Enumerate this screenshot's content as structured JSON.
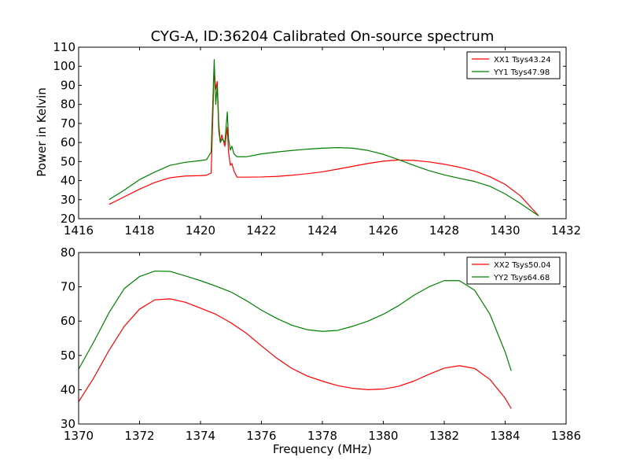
{
  "figure": {
    "title": "CYG-A, ID:36204 Calibrated On-source spectrum",
    "ylabel": "Power in Kelvin",
    "xlabel": "Frequency (MHz)"
  },
  "chart_data": [
    {
      "type": "line",
      "title": "CYG-A, ID:36204 Calibrated On-source spectrum",
      "xlabel": "",
      "ylabel": "Power in Kelvin",
      "xlim": [
        1416,
        1432
      ],
      "ylim": [
        20,
        110
      ],
      "xticks": [
        1416,
        1418,
        1420,
        1422,
        1424,
        1426,
        1428,
        1430,
        1432
      ],
      "yticks": [
        20,
        30,
        40,
        50,
        60,
        70,
        80,
        90,
        100,
        110
      ],
      "grid": false,
      "legend_position": "top-right",
      "series": [
        {
          "name": "XX1 Tsys43.24",
          "color": "#ff0000",
          "points": [
            [
              1417.0,
              27.5
            ],
            [
              1417.5,
              31.5
            ],
            [
              1418.0,
              35.5
            ],
            [
              1418.5,
              39.0
            ],
            [
              1419.0,
              41.5
            ],
            [
              1419.5,
              42.4
            ],
            [
              1420.0,
              42.6
            ],
            [
              1420.2,
              42.8
            ],
            [
              1420.35,
              44.0
            ],
            [
              1420.45,
              98.0
            ],
            [
              1420.5,
              88.0
            ],
            [
              1420.55,
              92.0
            ],
            [
              1420.6,
              70.0
            ],
            [
              1420.65,
              60.0
            ],
            [
              1420.7,
              64.0
            ],
            [
              1420.8,
              58.0
            ],
            [
              1420.88,
              68.0
            ],
            [
              1420.92,
              55.0
            ],
            [
              1420.98,
              48.0
            ],
            [
              1421.03,
              49.0
            ],
            [
              1421.1,
              45.0
            ],
            [
              1421.2,
              41.8
            ],
            [
              1421.5,
              41.8
            ],
            [
              1422.0,
              41.9
            ],
            [
              1422.5,
              42.2
            ],
            [
              1423.0,
              42.8
            ],
            [
              1423.5,
              43.6
            ],
            [
              1424.0,
              44.6
            ],
            [
              1424.5,
              46.0
            ],
            [
              1425.0,
              47.5
            ],
            [
              1425.5,
              49.0
            ],
            [
              1426.0,
              50.2
            ],
            [
              1426.5,
              50.8
            ],
            [
              1427.0,
              50.6
            ],
            [
              1427.5,
              49.8
            ],
            [
              1428.0,
              48.6
            ],
            [
              1428.5,
              47.0
            ],
            [
              1429.0,
              45.0
            ],
            [
              1429.5,
              42.0
            ],
            [
              1430.0,
              38.0
            ],
            [
              1430.5,
              32.0
            ],
            [
              1431.1,
              21.5
            ]
          ]
        },
        {
          "name": "YY1 Tsys47.98",
          "color": "#008000",
          "points": [
            [
              1417.0,
              30.0
            ],
            [
              1417.5,
              35.0
            ],
            [
              1418.0,
              40.5
            ],
            [
              1418.5,
              44.5
            ],
            [
              1419.0,
              48.0
            ],
            [
              1419.5,
              49.6
            ],
            [
              1420.0,
              50.5
            ],
            [
              1420.2,
              51.0
            ],
            [
              1420.35,
              55.0
            ],
            [
              1420.45,
              103.5
            ],
            [
              1420.5,
              80.0
            ],
            [
              1420.55,
              90.0
            ],
            [
              1420.6,
              66.0
            ],
            [
              1420.65,
              60.0
            ],
            [
              1420.72,
              62.0
            ],
            [
              1420.8,
              60.0
            ],
            [
              1420.88,
              76.0
            ],
            [
              1420.92,
              62.0
            ],
            [
              1420.98,
              56.0
            ],
            [
              1421.03,
              58.0
            ],
            [
              1421.1,
              54.0
            ],
            [
              1421.2,
              52.5
            ],
            [
              1421.5,
              52.5
            ],
            [
              1422.0,
              54.0
            ],
            [
              1422.5,
              55.0
            ],
            [
              1423.0,
              55.8
            ],
            [
              1423.5,
              56.5
            ],
            [
              1424.0,
              57.0
            ],
            [
              1424.5,
              57.3
            ],
            [
              1425.0,
              57.0
            ],
            [
              1425.5,
              55.8
            ],
            [
              1426.0,
              53.8
            ],
            [
              1426.5,
              51.0
            ],
            [
              1427.0,
              48.0
            ],
            [
              1427.5,
              45.2
            ],
            [
              1428.0,
              43.0
            ],
            [
              1428.5,
              41.2
            ],
            [
              1429.0,
              39.5
            ],
            [
              1429.5,
              37.0
            ],
            [
              1430.0,
              33.0
            ],
            [
              1430.5,
              28.0
            ],
            [
              1431.1,
              21.5
            ]
          ]
        }
      ]
    },
    {
      "type": "line",
      "title": "",
      "xlabel": "Frequency (MHz)",
      "ylabel": "",
      "xlim": [
        1370,
        1386
      ],
      "ylim": [
        30,
        80
      ],
      "xticks": [
        1370,
        1372,
        1374,
        1376,
        1378,
        1380,
        1382,
        1384,
        1386
      ],
      "yticks": [
        30,
        40,
        50,
        60,
        70,
        80
      ],
      "grid": false,
      "legend_position": "top-right",
      "series": [
        {
          "name": "XX2 Tsys50.04",
          "color": "#ff0000",
          "points": [
            [
              1370.0,
              36.5
            ],
            [
              1370.5,
              43.5
            ],
            [
              1371.0,
              51.5
            ],
            [
              1371.5,
              58.5
            ],
            [
              1372.0,
              63.5
            ],
            [
              1372.5,
              66.2
            ],
            [
              1373.0,
              66.5
            ],
            [
              1373.5,
              65.5
            ],
            [
              1374.0,
              63.8
            ],
            [
              1374.5,
              62.0
            ],
            [
              1375.0,
              59.5
            ],
            [
              1375.5,
              56.5
            ],
            [
              1376.0,
              52.8
            ],
            [
              1376.5,
              49.2
            ],
            [
              1377.0,
              46.2
            ],
            [
              1377.5,
              44.0
            ],
            [
              1378.0,
              42.5
            ],
            [
              1378.5,
              41.2
            ],
            [
              1379.0,
              40.4
            ],
            [
              1379.5,
              40.0
            ],
            [
              1380.0,
              40.2
            ],
            [
              1380.5,
              41.0
            ],
            [
              1381.0,
              42.5
            ],
            [
              1381.5,
              44.5
            ],
            [
              1382.0,
              46.3
            ],
            [
              1382.5,
              47.0
            ],
            [
              1383.0,
              46.2
            ],
            [
              1383.5,
              43.0
            ],
            [
              1384.0,
              37.5
            ],
            [
              1384.2,
              34.5
            ]
          ]
        },
        {
          "name": "YY2 Tsys64.68",
          "color": "#008000",
          "points": [
            [
              1370.0,
              46.0
            ],
            [
              1370.5,
              54.0
            ],
            [
              1371.0,
              62.5
            ],
            [
              1371.5,
              69.5
            ],
            [
              1372.0,
              73.0
            ],
            [
              1372.5,
              74.6
            ],
            [
              1373.0,
              74.5
            ],
            [
              1373.5,
              73.2
            ],
            [
              1374.0,
              71.8
            ],
            [
              1374.5,
              70.2
            ],
            [
              1375.0,
              68.5
            ],
            [
              1375.5,
              66.0
            ],
            [
              1376.0,
              63.2
            ],
            [
              1376.5,
              60.8
            ],
            [
              1377.0,
              58.8
            ],
            [
              1377.5,
              57.5
            ],
            [
              1378.0,
              57.0
            ],
            [
              1378.5,
              57.3
            ],
            [
              1379.0,
              58.5
            ],
            [
              1379.5,
              60.0
            ],
            [
              1380.0,
              62.0
            ],
            [
              1380.5,
              64.5
            ],
            [
              1381.0,
              67.5
            ],
            [
              1381.5,
              70.0
            ],
            [
              1382.0,
              71.8
            ],
            [
              1382.5,
              71.8
            ],
            [
              1383.0,
              69.0
            ],
            [
              1383.5,
              62.0
            ],
            [
              1384.0,
              51.0
            ],
            [
              1384.2,
              45.5
            ]
          ]
        }
      ]
    }
  ]
}
